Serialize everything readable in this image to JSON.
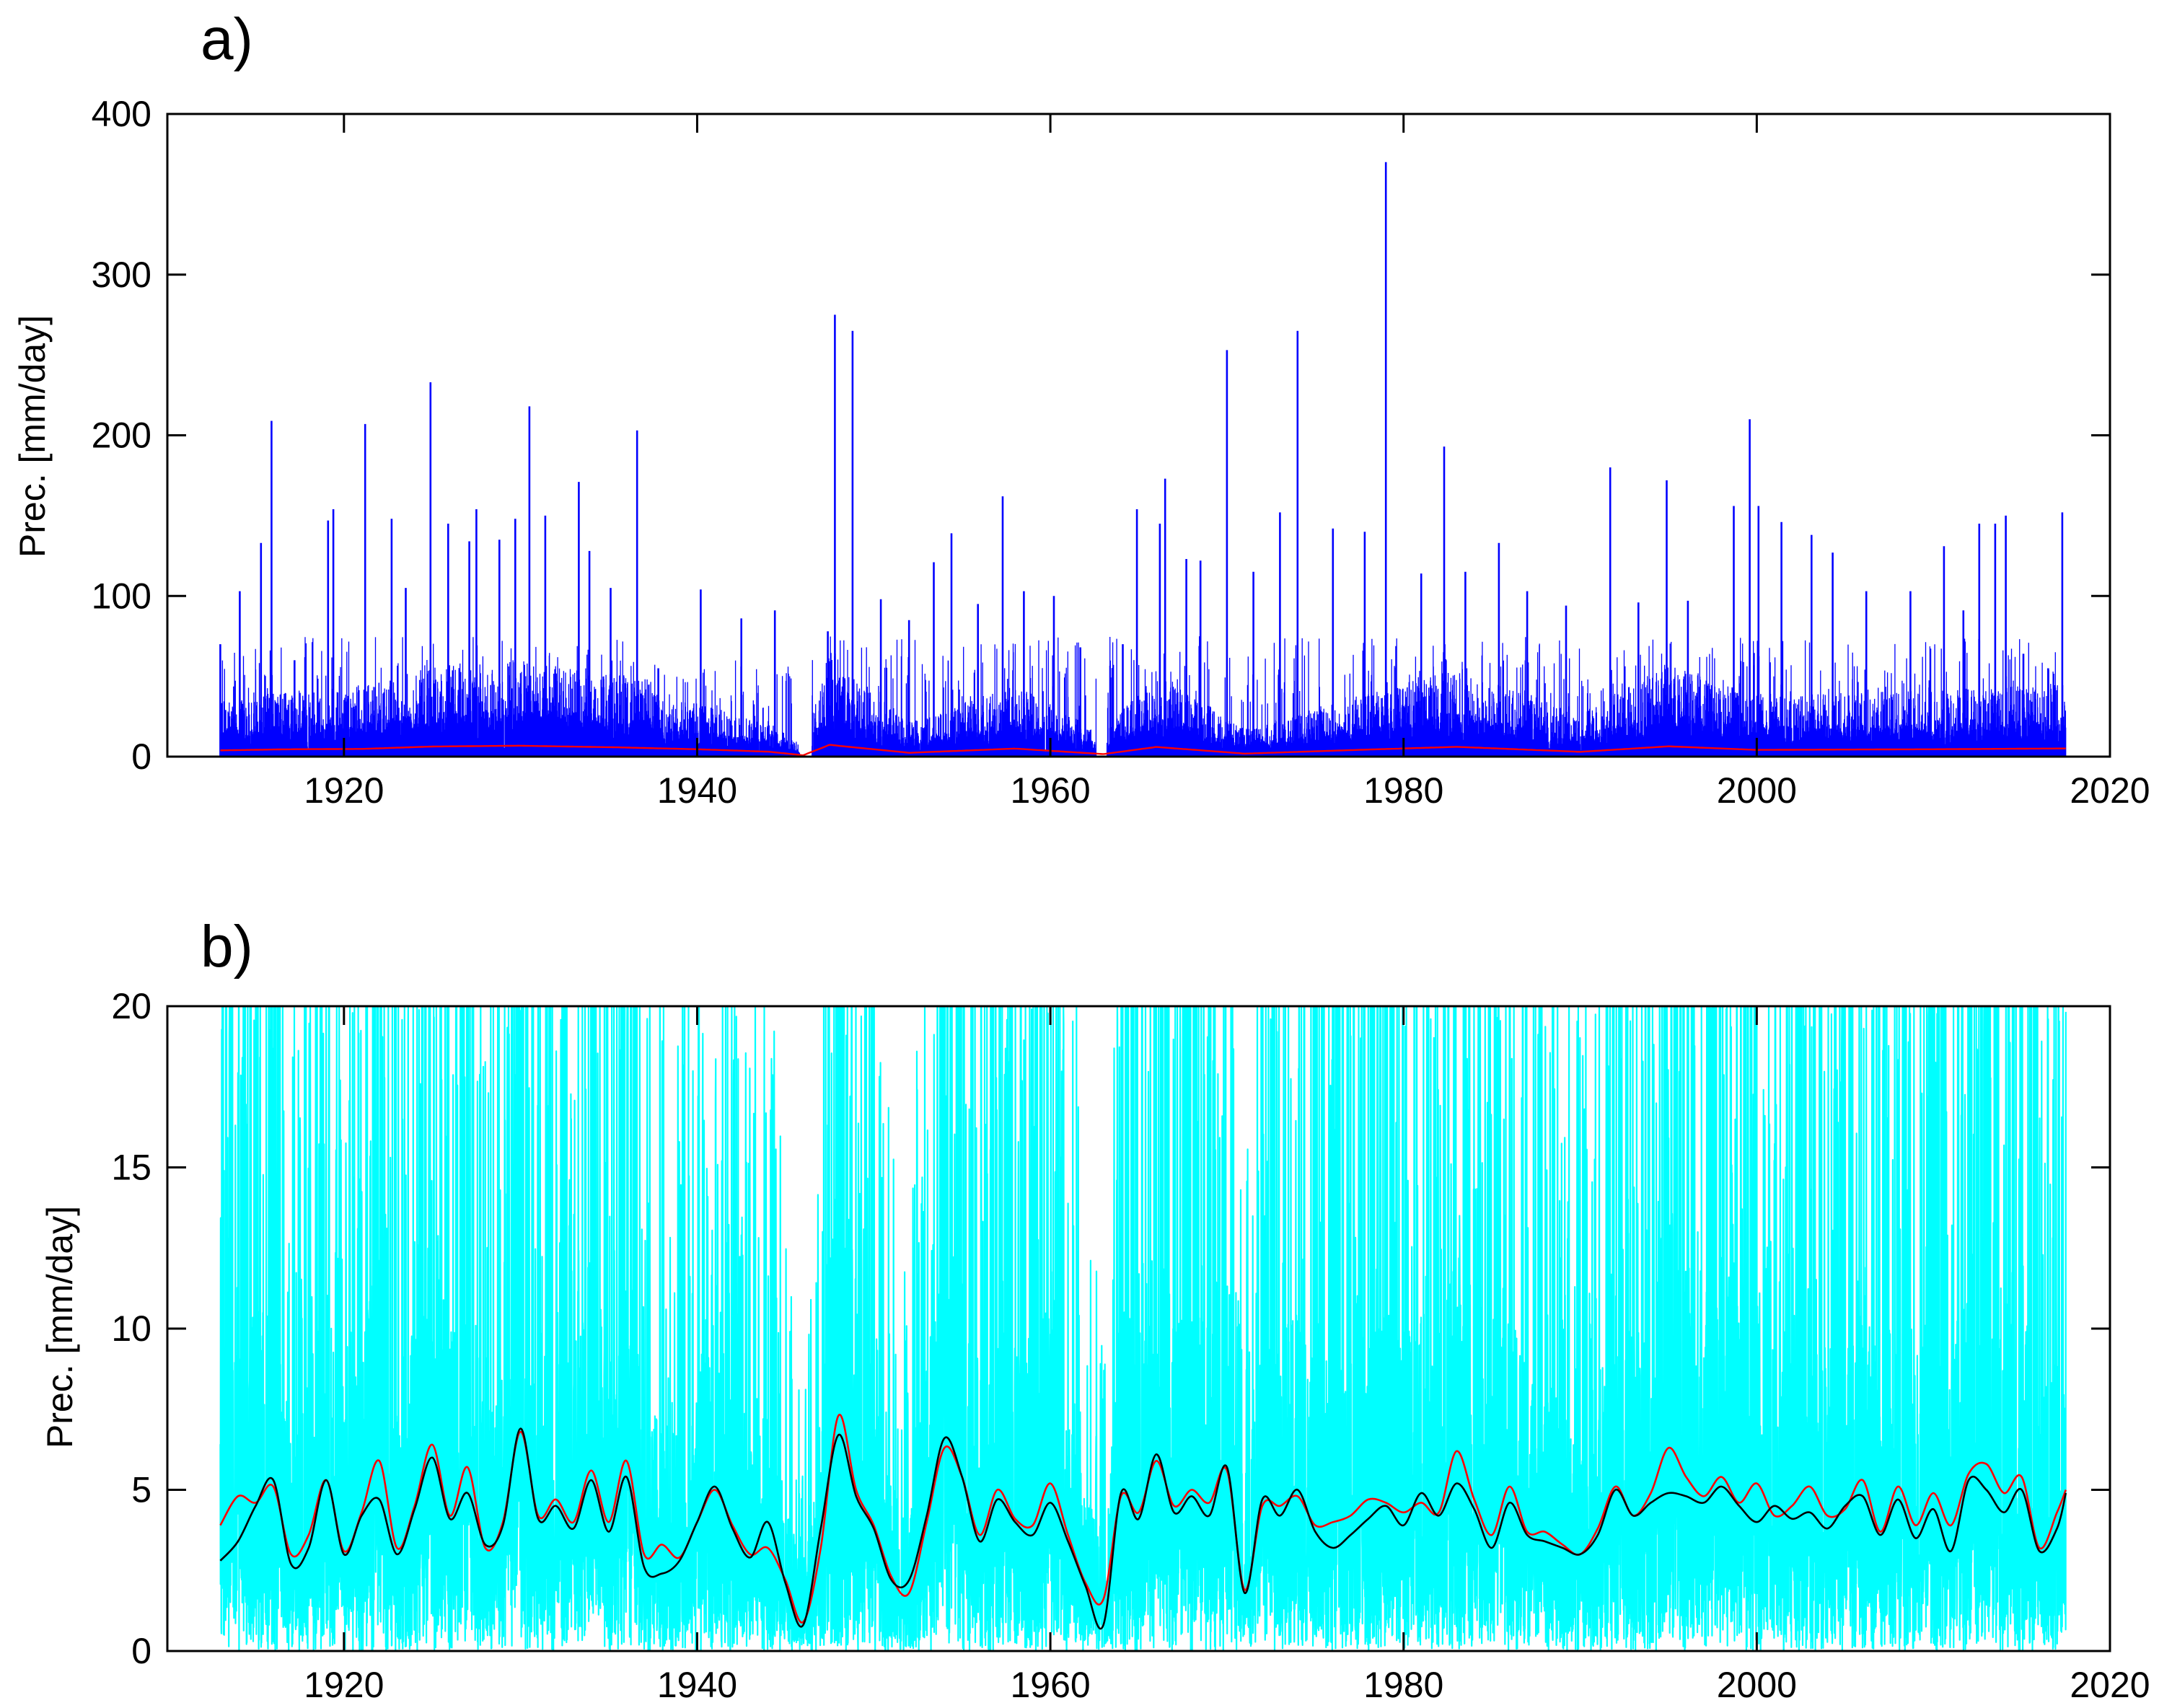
{
  "chart_data": [
    {
      "type": "line",
      "panel_label": "a)",
      "ylabel": "Prec. [mm/day]",
      "xlabel": "",
      "xlim": [
        1910,
        2020
      ],
      "ylim": [
        0,
        400
      ],
      "xticks": [
        1920,
        1940,
        1960,
        1980,
        2000,
        2020
      ],
      "yticks": [
        0,
        100,
        200,
        300,
        400
      ],
      "xtick_labels": [
        "1920",
        "1940",
        "1960",
        "1980",
        "2000",
        "2020"
      ],
      "ytick_labels": [
        "0",
        "100",
        "200",
        "300",
        "400"
      ],
      "record_span": [
        1913,
        2017.5
      ],
      "gaps": [
        [
          1945.8,
          1946.5
        ],
        [
          1962.6,
          1963.2
        ]
      ],
      "series": [
        {
          "name": "daily precipitation",
          "color": "#0000ff",
          "style": "spikes",
          "peaks": [
            [
              1913.0,
              70
            ],
            [
              1914.1,
              103
            ],
            [
              1915.3,
              133
            ],
            [
              1915.9,
              209
            ],
            [
              1917.2,
              60
            ],
            [
              1919.1,
              147
            ],
            [
              1919.4,
              154
            ],
            [
              1921.2,
              207
            ],
            [
              1922.7,
              148
            ],
            [
              1923.5,
              105
            ],
            [
              1924.9,
              233
            ],
            [
              1925.9,
              145
            ],
            [
              1927.1,
              134
            ],
            [
              1927.5,
              154
            ],
            [
              1928.8,
              135
            ],
            [
              1929.7,
              148
            ],
            [
              1930.5,
              218
            ],
            [
              1931.4,
              150
            ],
            [
              1933.3,
              171
            ],
            [
              1933.9,
              128
            ],
            [
              1935.1,
              105
            ],
            [
              1936.6,
              203
            ],
            [
              1937.8,
              55
            ],
            [
              1940.2,
              104
            ],
            [
              1942.5,
              86
            ],
            [
              1944.4,
              91
            ],
            [
              1947.4,
              78
            ],
            [
              1947.8,
              275
            ],
            [
              1948.8,
              265
            ],
            [
              1950.4,
              98
            ],
            [
              1952.0,
              85
            ],
            [
              1953.4,
              121
            ],
            [
              1954.4,
              139
            ],
            [
              1955.9,
              95
            ],
            [
              1957.3,
              162
            ],
            [
              1958.5,
              103
            ],
            [
              1960.2,
              100
            ],
            [
              1961.7,
              68
            ],
            [
              1964.1,
              70
            ],
            [
              1964.9,
              154
            ],
            [
              1966.2,
              145
            ],
            [
              1966.5,
              173
            ],
            [
              1967.7,
              123
            ],
            [
              1968.5,
              122
            ],
            [
              1970.0,
              253
            ],
            [
              1971.5,
              115
            ],
            [
              1973.0,
              152
            ],
            [
              1974.0,
              265
            ],
            [
              1976.0,
              142
            ],
            [
              1977.8,
              140
            ],
            [
              1979.0,
              370
            ],
            [
              1981.0,
              114
            ],
            [
              1982.3,
              193
            ],
            [
              1983.5,
              115
            ],
            [
              1985.4,
              133
            ],
            [
              1987.0,
              103
            ],
            [
              1989.2,
              94
            ],
            [
              1991.7,
              180
            ],
            [
              1993.3,
              96
            ],
            [
              1994.9,
              172
            ],
            [
              1996.1,
              97
            ],
            [
              1998.7,
              156
            ],
            [
              1999.6,
              210
            ],
            [
              2000.1,
              156
            ],
            [
              2001.4,
              146
            ],
            [
              2003.1,
              138
            ],
            [
              2004.3,
              127
            ],
            [
              2006.2,
              103
            ],
            [
              2008.7,
              103
            ],
            [
              2010.6,
              131
            ],
            [
              2011.7,
              91
            ],
            [
              2012.6,
              145
            ],
            [
              2013.5,
              145
            ],
            [
              2014.1,
              150
            ],
            [
              2015.1,
              64
            ],
            [
              2016.5,
              55
            ],
            [
              2017.3,
              152
            ]
          ]
        },
        {
          "name": "smoothed mean",
          "color": "#ff0000",
          "style": "line",
          "x": [
            1913,
            1917,
            1921,
            1925,
            1930,
            1935,
            1940,
            1944,
            1946,
            1947.5,
            1952,
            1958,
            1963,
            1966,
            1971,
            1978,
            1983,
            1990,
            1995,
            2000,
            2005,
            2010,
            2017.5
          ],
          "y": [
            3.9,
            4.6,
            4.8,
            6.3,
            6.8,
            5.9,
            4.6,
            3.1,
            0.9,
            7.3,
            2.4,
            5.0,
            1.6,
            6.0,
            1.9,
            4.4,
            6.1,
            3.0,
            6.4,
            4.2,
            4.4,
            4.6,
            5.1
          ]
        }
      ]
    },
    {
      "type": "line",
      "panel_label": "b)",
      "ylabel": "Prec. [mm/day]",
      "xlabel": "",
      "xlim": [
        1910,
        2020
      ],
      "ylim": [
        0,
        20
      ],
      "xticks": [
        1920,
        1940,
        1960,
        1980,
        2000,
        2020
      ],
      "yticks": [
        0,
        5,
        10,
        15,
        20
      ],
      "xtick_labels": [
        "1920",
        "1940",
        "1960",
        "1980",
        "2000",
        "2020"
      ],
      "ytick_labels": [
        "0",
        "5",
        "10",
        "15",
        "20"
      ],
      "record_span": [
        1913,
        2017.5
      ],
      "series": [
        {
          "name": "daily precipitation (clipped)",
          "color": "#00ffff",
          "style": "spikes",
          "note": "dense daily series, values exceeding 20 mm/day clipped at top of axes"
        },
        {
          "name": "red smoothed curve",
          "color": "#ff0000",
          "style": "line",
          "x": [
            1913,
            1914,
            1915,
            1916,
            1917,
            1918,
            1919,
            1920,
            1921,
            1922,
            1923,
            1924,
            1925,
            1926,
            1927,
            1928,
            1929,
            1930,
            1931,
            1932,
            1933,
            1934,
            1935,
            1936,
            1937,
            1938,
            1939,
            1940,
            1941,
            1942,
            1943,
            1944,
            1945,
            1946,
            1947,
            1948,
            1949,
            1950,
            1951,
            1952,
            1953,
            1954,
            1955,
            1956,
            1957,
            1958,
            1959,
            1960,
            1961,
            1962,
            1963,
            1964,
            1965,
            1966,
            1967,
            1968,
            1969,
            1970,
            1971,
            1972,
            1973,
            1974,
            1975,
            1976,
            1977,
            1978,
            1979,
            1980,
            1981,
            1982,
            1983,
            1984,
            1985,
            1986,
            1987,
            1988,
            1989,
            1990,
            1991,
            1992,
            1993,
            1994,
            1995,
            1996,
            1997,
            1998,
            1999,
            2000,
            2001,
            2002,
            2003,
            2004,
            2005,
            2006,
            2007,
            2008,
            2009,
            2010,
            2011,
            2012,
            2013,
            2014,
            2015,
            2016,
            2017,
            2017.5
          ],
          "y": [
            3.9,
            4.8,
            4.6,
            5.1,
            3.0,
            3.6,
            5.3,
            3.1,
            4.3,
            5.9,
            3.2,
            4.5,
            6.4,
            4.2,
            5.7,
            3.2,
            4.0,
            6.8,
            4.2,
            4.7,
            4.0,
            5.6,
            4.0,
            5.9,
            3.0,
            3.3,
            2.9,
            4.0,
            5.0,
            3.9,
            3.0,
            3.2,
            2.2,
            0.9,
            3.2,
            7.3,
            5.0,
            3.9,
            2.3,
            1.8,
            4.0,
            6.3,
            5.4,
            3.6,
            5.0,
            4.1,
            3.9,
            5.2,
            3.6,
            2.1,
            1.6,
            4.8,
            4.3,
            5.9,
            4.5,
            5.0,
            4.6,
            5.6,
            1.9,
            4.5,
            4.5,
            4.8,
            3.9,
            4.0,
            4.2,
            4.7,
            4.6,
            4.3,
            4.6,
            4.3,
            6.2,
            4.7,
            3.6,
            5.1,
            3.7,
            3.7,
            3.3,
            3.0,
            3.8,
            5.1,
            4.2,
            4.9,
            6.3,
            5.4,
            4.8,
            5.4,
            4.6,
            5.2,
            4.2,
            4.5,
            5.1,
            4.2,
            4.4,
            5.3,
            3.7,
            5.1,
            3.9,
            4.9,
            3.9,
            5.5,
            5.8,
            4.9,
            5.4,
            3.2,
            4.3,
            5.0
          ],
          "min_point": [
            1945.6,
            0.9
          ]
        },
        {
          "name": "black smoothed curve",
          "color": "#000000",
          "style": "line",
          "x": [
            1913,
            1914,
            1915,
            1916,
            1917,
            1918,
            1919,
            1920,
            1921,
            1922,
            1923,
            1924,
            1925,
            1926,
            1927,
            1928,
            1929,
            1930,
            1931,
            1932,
            1933,
            1934,
            1935,
            1936,
            1937,
            1938,
            1939,
            1940,
            1941,
            1942,
            1943,
            1944,
            1945,
            1946,
            1947,
            1948,
            1949,
            1950,
            1951,
            1952,
            1953,
            1954,
            1955,
            1956,
            1957,
            1958,
            1959,
            1960,
            1961,
            1962,
            1963,
            1964,
            1965,
            1966,
            1967,
            1968,
            1969,
            1970,
            1971,
            1972,
            1973,
            1974,
            1975,
            1976,
            1977,
            1978,
            1979,
            1980,
            1981,
            1982,
            1983,
            1984,
            1985,
            1986,
            1987,
            1988,
            1989,
            1990,
            1991,
            1992,
            1993,
            1994,
            1995,
            1996,
            1997,
            1998,
            1999,
            2000,
            2001,
            2002,
            2003,
            2004,
            2005,
            2006,
            2007,
            2008,
            2009,
            2010,
            2011,
            2012,
            2013,
            2014,
            2015,
            2016,
            2017,
            2017.5
          ],
          "y": [
            2.8,
            3.4,
            4.5,
            5.3,
            2.7,
            3.2,
            5.3,
            3.0,
            4.2,
            4.7,
            3.0,
            4.4,
            6.0,
            4.1,
            4.9,
            3.3,
            3.9,
            6.9,
            4.1,
            4.5,
            3.8,
            5.3,
            3.7,
            5.4,
            2.6,
            2.4,
            2.8,
            4.0,
            5.1,
            3.8,
            2.9,
            4.0,
            2.1,
            0.8,
            3.8,
            6.7,
            4.8,
            3.8,
            2.2,
            2.2,
            4.2,
            6.6,
            5.4,
            3.4,
            4.7,
            4.0,
            3.6,
            4.6,
            3.4,
            2.0,
            0.8,
            4.9,
            4.1,
            6.1,
            4.3,
            4.8,
            4.2,
            5.7,
            1.8,
            4.7,
            4.2,
            5.0,
            3.7,
            3.2,
            3.6,
            4.1,
            4.5,
            3.9,
            4.9,
            4.2,
            5.2,
            4.4,
            3.2,
            4.6,
            3.6,
            3.4,
            3.2,
            3.0,
            3.6,
            5.0,
            4.2,
            4.6,
            4.9,
            4.8,
            4.6,
            5.1,
            4.5,
            4.0,
            4.5,
            4.1,
            4.3,
            3.8,
            4.5,
            4.8,
            3.6,
            4.7,
            3.5,
            4.4,
            3.1,
            5.3,
            5.0,
            4.3,
            5.0,
            3.1,
            3.8,
            4.9
          ],
          "min_point": [
            1963.0,
            0.75
          ]
        }
      ]
    }
  ]
}
